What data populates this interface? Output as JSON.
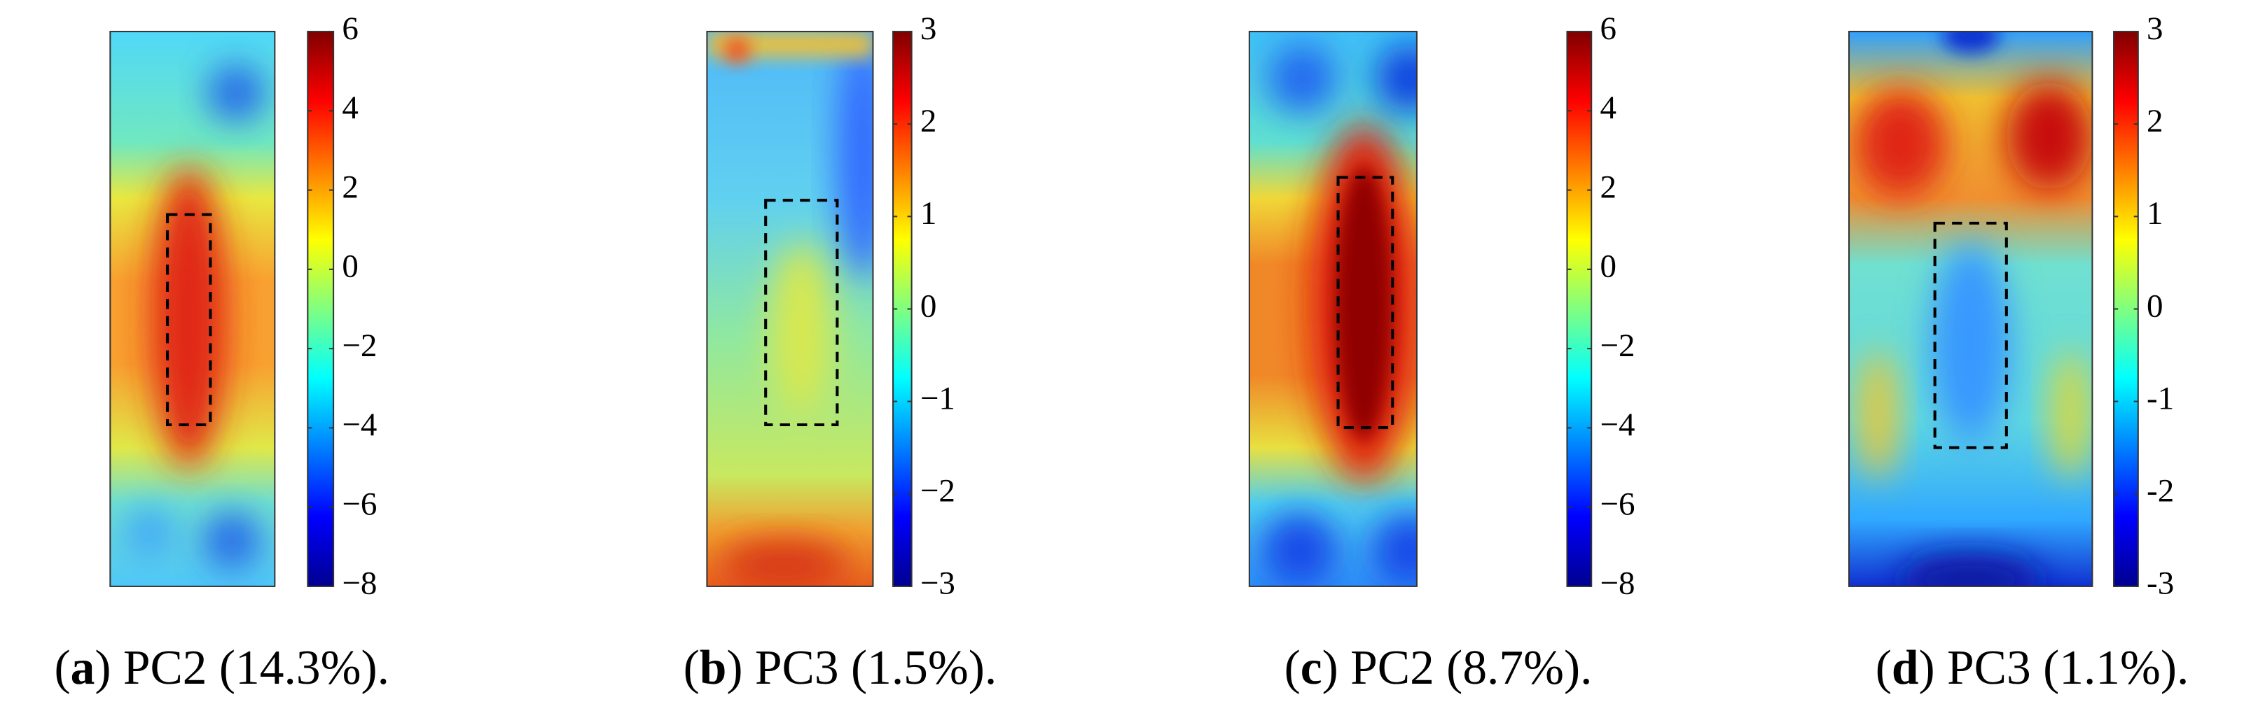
{
  "chart_data": [
    {
      "type": "heatmap",
      "ylim": [
        -8,
        6
      ],
      "yticks": [
        6,
        4,
        2,
        0,
        {
          "value": -2,
          "label": "−2"
        },
        {
          "value": -4,
          "label": "−4"
        },
        {
          "value": -6,
          "label": "−6"
        },
        {
          "value": -8,
          "label": "−8"
        }
      ],
      "caption": [
        "(",
        "a",
        ") PC2 (14.3%)."
      ]
    },
    {
      "type": "heatmap",
      "ylim": [
        -3,
        3
      ],
      "yticks": [
        3,
        2,
        1,
        0,
        {
          "value": -1,
          "label": "−1"
        },
        {
          "value": -2,
          "label": "−2"
        },
        {
          "value": -3,
          "label": "−3"
        }
      ],
      "caption": [
        "(",
        "b",
        ") PC3 (1.5%)."
      ]
    },
    {
      "type": "heatmap",
      "ylim": [
        -8,
        6
      ],
      "yticks": [
        6,
        4,
        2,
        0,
        {
          "value": -2,
          "label": "−2"
        },
        {
          "value": -4,
          "label": "−4"
        },
        {
          "value": -6,
          "label": "−6"
        },
        {
          "value": -8,
          "label": "−8"
        }
      ],
      "caption": [
        "(",
        "c",
        ") PC2 (8.7%)."
      ]
    },
    {
      "type": "heatmap",
      "ylim": [
        -3,
        3
      ],
      "yticks": [
        3,
        2,
        1,
        0,
        {
          "value": -1,
          "label": "-1"
        },
        {
          "value": -2,
          "label": "-2"
        },
        {
          "value": -3,
          "label": "-3"
        }
      ],
      "caption": [
        "(",
        "d",
        ") PC3 (1.1%)."
      ]
    }
  ]
}
